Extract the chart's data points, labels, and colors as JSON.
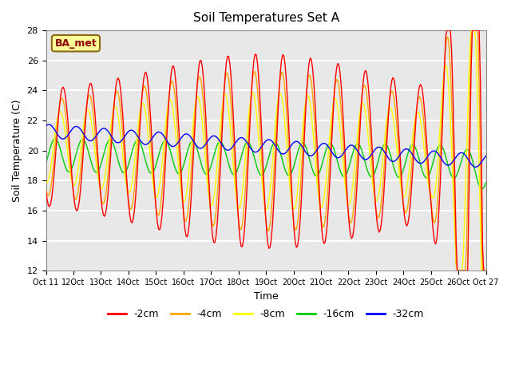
{
  "title": "Soil Temperatures Set A",
  "xlabel": "Time",
  "ylabel": "Soil Temperature (C)",
  "ylim": [
    12,
    28
  ],
  "yticks": [
    12,
    14,
    16,
    18,
    20,
    22,
    24,
    26,
    28
  ],
  "annotation_text": "BA_met",
  "colors": {
    "-2cm": "#FF0000",
    "-4cm": "#FFA500",
    "-8cm": "#FFFF00",
    "-16cm": "#00CC00",
    "-32cm": "#0000FF"
  },
  "legend_labels": [
    "-2cm",
    "-4cm",
    "-8cm",
    "-16cm",
    "-32cm"
  ],
  "tick_labels": [
    "Oct 11",
    "12Oct",
    "13Oct",
    "14Oct",
    "15Oct",
    "16Oct",
    "17Oct",
    "18Oct",
    "19Oct",
    "20Oct",
    "21Oct",
    "22Oct",
    "23Oct",
    "24Oct",
    "25Oct",
    "26Oct",
    "Oct 27"
  ],
  "background_color": "#E8E8E8",
  "grid_color": "#FFFFFF"
}
